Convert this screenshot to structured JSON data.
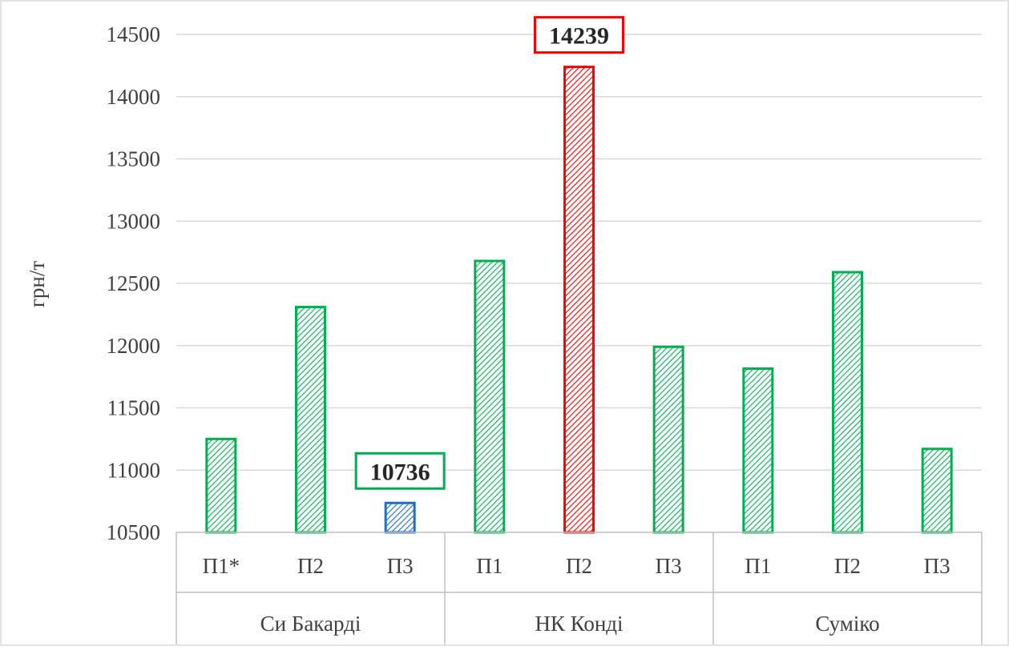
{
  "chart_data": {
    "type": "bar",
    "title": "",
    "xlabel": "",
    "ylabel": "грн/т",
    "ylim": [
      10500,
      14500
    ],
    "ytick_step": 500,
    "grid": true,
    "groups": [
      {
        "name": "Си Бакарді",
        "categories": [
          "П1*",
          "П2",
          "П3"
        ],
        "values": [
          11250,
          12310,
          10736
        ]
      },
      {
        "name": "НК Конді",
        "categories": [
          "П1",
          "П2",
          "П3"
        ],
        "values": [
          12680,
          14239,
          11990
        ]
      },
      {
        "name": "Суміко",
        "categories": [
          "П1",
          "П2",
          "П3"
        ],
        "values": [
          11815,
          12590,
          11170
        ]
      }
    ],
    "highlights": [
      {
        "group": 0,
        "index": 2,
        "label": "10736",
        "color": "#1f6fc5",
        "box_color": "#00b050"
      },
      {
        "group": 1,
        "index": 1,
        "label": "14239",
        "color": "#ff0000",
        "box_color": "#ff0000"
      }
    ],
    "colors": {
      "default_bar": "#00b050",
      "gridline": "#d9d9d9",
      "axis": "#bfbfbf"
    }
  }
}
